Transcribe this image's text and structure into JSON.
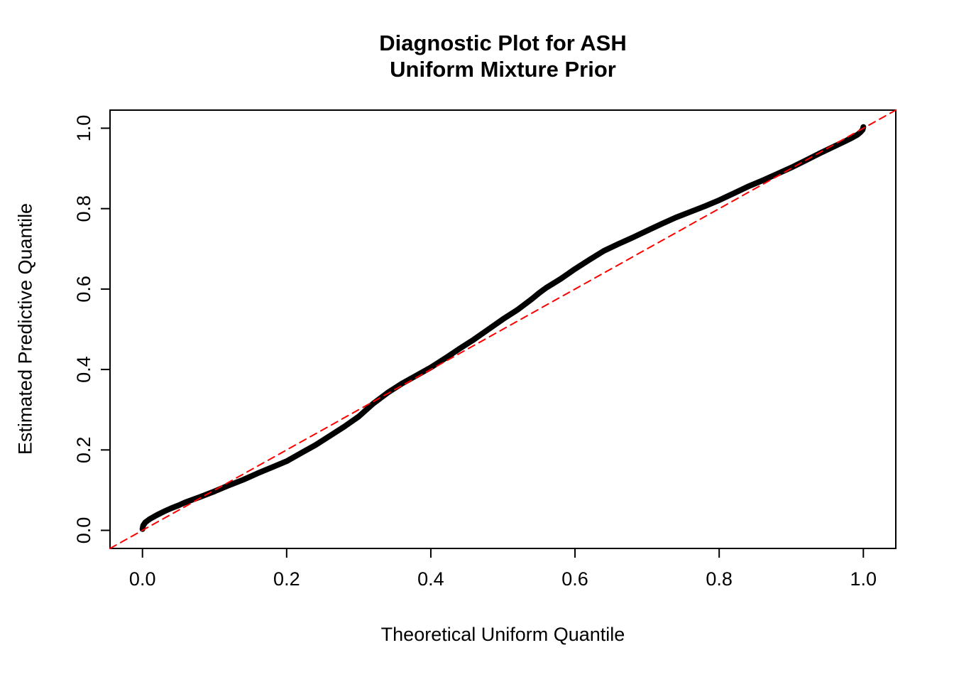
{
  "figure": {
    "title_line1": "Diagnostic Plot for ASH",
    "title_line2": "Uniform Mixture Prior",
    "x_axis_label": "Theoretical Uniform Quantile",
    "y_axis_label": "Estimated Predictive Quantile",
    "background_color": "#ffffff",
    "foreground_color": "#000000"
  },
  "chart_data": {
    "type": "line",
    "title": "Diagnostic Plot for ASH\nUniform Mixture Prior",
    "xlabel": "Theoretical Uniform Quantile",
    "ylabel": "Estimated Predictive Quantile",
    "xlim": [
      -0.045,
      1.045
    ],
    "ylim": [
      -0.045,
      1.045
    ],
    "grid": false,
    "legend": null,
    "x_ticks": [
      0.0,
      0.2,
      0.4,
      0.6,
      0.8,
      1.0
    ],
    "y_ticks": [
      0.0,
      0.2,
      0.4,
      0.6,
      0.8,
      1.0
    ],
    "x_tick_labels": [
      "0.0",
      "0.2",
      "0.4",
      "0.6",
      "0.8",
      "1.0"
    ],
    "y_tick_labels": [
      "0.0",
      "0.2",
      "0.4",
      "0.6",
      "0.8",
      "1.0"
    ],
    "series": [
      {
        "name": "qq-curve",
        "description": "Estimated predictive quantiles vs theoretical uniform quantiles",
        "color": "#000000",
        "style": "solid",
        "width": 8,
        "points": [
          [
            0.0,
            0.003
          ],
          [
            0.001,
            0.012
          ],
          [
            0.004,
            0.02
          ],
          [
            0.01,
            0.028
          ],
          [
            0.02,
            0.038
          ],
          [
            0.03,
            0.047
          ],
          [
            0.04,
            0.055
          ],
          [
            0.05,
            0.062
          ],
          [
            0.06,
            0.07
          ],
          [
            0.08,
            0.083
          ],
          [
            0.1,
            0.097
          ],
          [
            0.12,
            0.112
          ],
          [
            0.14,
            0.126
          ],
          [
            0.16,
            0.142
          ],
          [
            0.18,
            0.157
          ],
          [
            0.2,
            0.172
          ],
          [
            0.22,
            0.192
          ],
          [
            0.24,
            0.212
          ],
          [
            0.26,
            0.235
          ],
          [
            0.28,
            0.258
          ],
          [
            0.3,
            0.283
          ],
          [
            0.32,
            0.315
          ],
          [
            0.34,
            0.342
          ],
          [
            0.36,
            0.365
          ],
          [
            0.38,
            0.385
          ],
          [
            0.4,
            0.405
          ],
          [
            0.42,
            0.428
          ],
          [
            0.44,
            0.452
          ],
          [
            0.46,
            0.475
          ],
          [
            0.48,
            0.5
          ],
          [
            0.5,
            0.525
          ],
          [
            0.52,
            0.548
          ],
          [
            0.54,
            0.575
          ],
          [
            0.55,
            0.59
          ],
          [
            0.56,
            0.603
          ],
          [
            0.58,
            0.625
          ],
          [
            0.6,
            0.65
          ],
          [
            0.62,
            0.673
          ],
          [
            0.64,
            0.695
          ],
          [
            0.66,
            0.712
          ],
          [
            0.68,
            0.728
          ],
          [
            0.7,
            0.745
          ],
          [
            0.72,
            0.762
          ],
          [
            0.74,
            0.778
          ],
          [
            0.76,
            0.792
          ],
          [
            0.78,
            0.806
          ],
          [
            0.8,
            0.821
          ],
          [
            0.82,
            0.838
          ],
          [
            0.84,
            0.855
          ],
          [
            0.86,
            0.87
          ],
          [
            0.88,
            0.886
          ],
          [
            0.9,
            0.902
          ],
          [
            0.92,
            0.92
          ],
          [
            0.94,
            0.938
          ],
          [
            0.96,
            0.955
          ],
          [
            0.975,
            0.968
          ],
          [
            0.985,
            0.977
          ],
          [
            0.992,
            0.984
          ],
          [
            0.996,
            0.99
          ],
          [
            0.999,
            0.996
          ],
          [
            1.0,
            1.003
          ]
        ]
      },
      {
        "name": "reference-line",
        "description": "y = x identity reference line",
        "color": "#ff0000",
        "style": "dashed",
        "width": 2,
        "points": [
          [
            -0.045,
            -0.045
          ],
          [
            1.045,
            1.045
          ]
        ]
      }
    ]
  }
}
